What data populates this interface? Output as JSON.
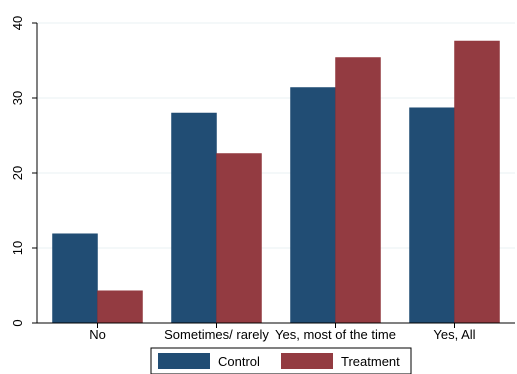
{
  "chart_data": {
    "type": "bar",
    "categories": [
      "No",
      "Sometimes/ rarely",
      "Yes, most of the time",
      "Yes, All"
    ],
    "series": [
      {
        "name": "Control",
        "values": [
          11.9,
          28.0,
          31.4,
          28.7
        ],
        "color": "#1a476f"
      },
      {
        "name": "Treatment",
        "values": [
          4.3,
          22.6,
          35.4,
          37.6
        ],
        "color": "#90353b"
      }
    ],
    "y_ticks": [
      0,
      10,
      20,
      30,
      40
    ],
    "ylim": [
      0,
      40
    ],
    "grid": true,
    "legend_position": "bottom",
    "title": "",
    "xlabel": "",
    "ylabel": ""
  }
}
